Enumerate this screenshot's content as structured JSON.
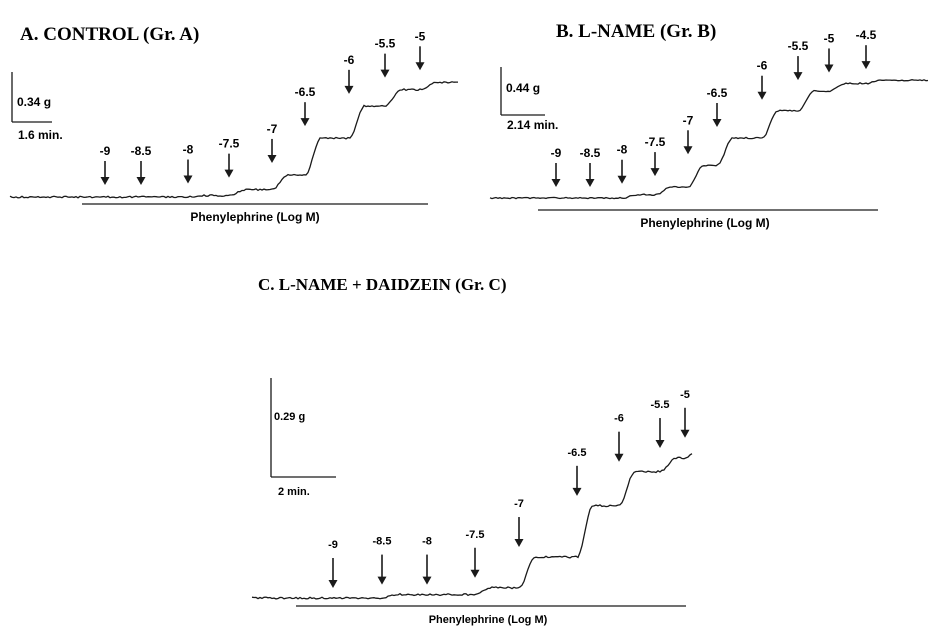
{
  "chart_data": [
    {
      "type": "line",
      "title": "A. CONTROL (Gr. A)",
      "xlabel": "Phenylephrine (Log M)",
      "scale_bar_tension": "0.34 g",
      "scale_bar_time": "1.6 min.",
      "doses": [
        "-9",
        "-8.5",
        "-8",
        "-7.5",
        "-7",
        "-6.5",
        "-6",
        "-5.5",
        "-5"
      ],
      "dose_values": [
        -9,
        -8.5,
        -8,
        -7.5,
        -7,
        -6.5,
        -6,
        -5.5,
        -5
      ],
      "response_levels_g": [
        0.0,
        0.0,
        0.01,
        0.05,
        0.15,
        0.4,
        0.62,
        0.73,
        0.78
      ]
    },
    {
      "type": "line",
      "title": "B. L-NAME (Gr. B)",
      "xlabel": "Phenylephrine (Log M)",
      "scale_bar_tension": "0.44 g",
      "scale_bar_time": "2.14 min.",
      "doses": [
        "-9",
        "-8.5",
        "-8",
        "-7.5",
        "-7",
        "-6.5",
        "-6",
        "-5.5",
        "-5",
        "-4.5"
      ],
      "dose_values": [
        -9,
        -8.5,
        -8,
        -7.5,
        -7,
        -6.5,
        -6,
        -5.5,
        -5,
        -4.5
      ],
      "response_levels_g": [
        0.0,
        0.0,
        0.03,
        0.1,
        0.3,
        0.55,
        0.8,
        0.98,
        1.05,
        1.08
      ]
    },
    {
      "type": "line",
      "title": "C. L-NAME + DAIDZEIN (Gr. C)",
      "xlabel": "Phenylephrine (Log M)",
      "scale_bar_tension": "0.29 g",
      "scale_bar_time": "2 min.",
      "doses": [
        "-9",
        "-8.5",
        "-8",
        "-7.5",
        "-7",
        "-6.5",
        "-6",
        "-5.5",
        "-5"
      ],
      "dose_values": [
        -9,
        -8.5,
        -8,
        -7.5,
        -7,
        -6.5,
        -6,
        -5.5,
        -5
      ],
      "response_levels_g": [
        0.0,
        0.01,
        0.01,
        0.03,
        0.12,
        0.27,
        0.37,
        0.41,
        0.44
      ]
    }
  ]
}
